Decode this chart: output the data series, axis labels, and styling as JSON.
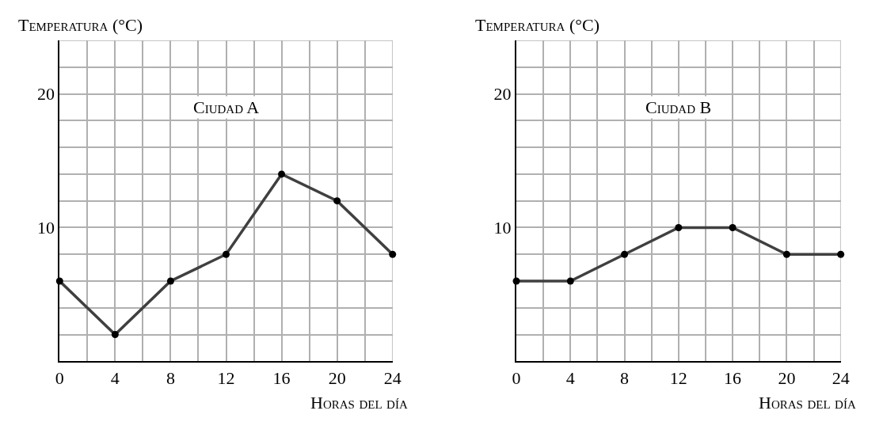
{
  "chart_data": [
    {
      "type": "line",
      "title": "Ciudad A",
      "xlabel": "Horas del día",
      "ylabel": "Temperatura (°C)",
      "x": [
        0,
        4,
        8,
        12,
        16,
        20,
        24
      ],
      "series": [
        {
          "color": "#404040",
          "values": [
            6,
            2,
            6,
            8,
            14,
            12,
            8
          ]
        }
      ],
      "xlim": [
        0,
        24
      ],
      "ylim": [
        0,
        24
      ],
      "xticks": [
        0,
        {
          "value": 2,
          "label": null
        },
        4,
        {
          "value": 6,
          "label": null
        },
        8,
        {
          "value": 10,
          "label": null
        },
        12,
        {
          "value": 14,
          "label": null
        },
        16,
        {
          "value": 18,
          "label": null
        },
        20,
        {
          "value": 22,
          "label": null
        },
        24
      ],
      "yticks": [
        {
          "value": 0,
          "label": null
        },
        {
          "value": 2,
          "label": null
        },
        {
          "value": 4,
          "label": null
        },
        {
          "value": 6,
          "label": null
        },
        {
          "value": 8,
          "label": null
        },
        10,
        {
          "value": 12,
          "label": null
        },
        {
          "value": 14,
          "label": null
        },
        {
          "value": 16,
          "label": null
        },
        {
          "value": 18,
          "label": null
        },
        20,
        {
          "value": 22,
          "label": null
        },
        {
          "value": 24,
          "label": null
        }
      ],
      "grid": true,
      "marker": "circle",
      "line_style": "solid"
    },
    {
      "type": "line",
      "title": "Ciudad B",
      "xlabel": "Horas del día",
      "ylabel": "Temperatura (°C)",
      "x": [
        0,
        4,
        8,
        12,
        16,
        20,
        24
      ],
      "series": [
        {
          "color": "#404040",
          "values": [
            6,
            6,
            8,
            10,
            10,
            8,
            8
          ]
        }
      ],
      "xlim": [
        0,
        24
      ],
      "ylim": [
        0,
        24
      ],
      "xticks": [
        0,
        {
          "value": 2,
          "label": null
        },
        4,
        {
          "value": 6,
          "label": null
        },
        8,
        {
          "value": 10,
          "label": null
        },
        12,
        {
          "value": 14,
          "label": null
        },
        16,
        {
          "value": 18,
          "label": null
        },
        20,
        {
          "value": 22,
          "label": null
        },
        24
      ],
      "yticks": [
        {
          "value": 0,
          "label": null
        },
        {
          "value": 2,
          "label": null
        },
        {
          "value": 4,
          "label": null
        },
        {
          "value": 6,
          "label": null
        },
        {
          "value": 8,
          "label": null
        },
        10,
        {
          "value": 12,
          "label": null
        },
        {
          "value": 14,
          "label": null
        },
        {
          "value": 16,
          "label": null
        },
        {
          "value": 18,
          "label": null
        },
        20,
        {
          "value": 22,
          "label": null
        },
        {
          "value": 24,
          "label": null
        }
      ],
      "grid": true,
      "marker": "circle",
      "line_style": "solid"
    }
  ]
}
